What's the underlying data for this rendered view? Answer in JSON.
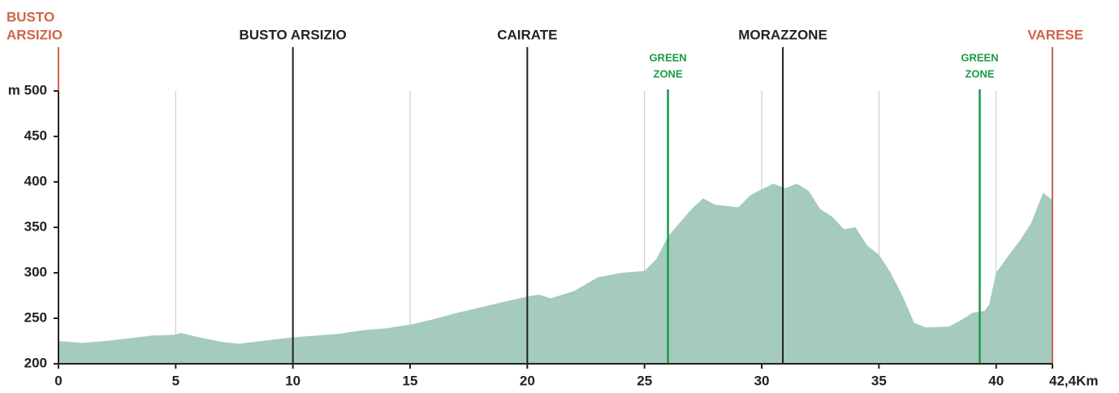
{
  "chart_data": {
    "type": "area",
    "x": [
      0,
      1,
      2,
      3,
      4,
      5,
      5.2,
      6,
      7,
      7.7,
      8,
      9,
      10,
      11,
      12,
      13,
      14,
      15,
      16,
      17,
      18,
      19,
      20,
      20.5,
      21,
      22,
      23,
      24,
      25,
      25.5,
      26,
      26.5,
      27,
      27.5,
      28,
      29,
      29.5,
      30,
      30.5,
      31,
      31.5,
      32,
      32.5,
      33,
      33.5,
      34,
      34.5,
      35,
      35.5,
      36,
      36.5,
      37,
      38,
      38.5,
      39,
      39.5,
      39.7,
      40,
      40.5,
      41,
      41.5,
      42,
      42.4
    ],
    "values": [
      225,
      223,
      225,
      228,
      231,
      232,
      234,
      229,
      224,
      222,
      223,
      226,
      229,
      231,
      233,
      237,
      239,
      243,
      249,
      256,
      262,
      268,
      274,
      276,
      272,
      280,
      295,
      300,
      302,
      315,
      340,
      355,
      370,
      382,
      375,
      372,
      385,
      392,
      398,
      393,
      398,
      390,
      370,
      362,
      348,
      350,
      330,
      320,
      300,
      275,
      245,
      240,
      241,
      248,
      256,
      258,
      265,
      300,
      318,
      335,
      355,
      388,
      380
    ],
    "color": "#a4cbbd",
    "xlim": [
      0,
      42.4
    ],
    "ylim": [
      200,
      500
    ],
    "xticks": [
      0,
      5,
      10,
      15,
      20,
      25,
      30,
      35,
      40,
      {
        "value": 42.4,
        "label": "42,4Km"
      }
    ],
    "yticks": [
      200,
      250,
      300,
      350,
      400,
      450,
      {
        "value": 500,
        "label": "m 500"
      }
    ],
    "grid": true,
    "markers": [
      {
        "x": 0,
        "lines": [
          "BUSTO",
          "ARSIZIO"
        ],
        "color": "#d0644a",
        "kind": "start"
      },
      {
        "x": 10,
        "lines": [
          "BUSTO ARSIZIO"
        ],
        "color": "#222222",
        "kind": "town"
      },
      {
        "x": 20,
        "lines": [
          "CAIRATE"
        ],
        "color": "#222222",
        "kind": "town"
      },
      {
        "x": 26,
        "lines": [
          "GREEN",
          "ZONE"
        ],
        "color": "#1a9a4a",
        "kind": "zone"
      },
      {
        "x": 30.9,
        "lines": [
          "MORAZZONE"
        ],
        "color": "#222222",
        "kind": "town"
      },
      {
        "x": 39.3,
        "lines": [
          "GREEN",
          "ZONE"
        ],
        "color": "#1a9a4a",
        "kind": "zone"
      },
      {
        "x": 42.4,
        "lines": [
          "VARESE"
        ],
        "color": "#d0644a",
        "kind": "end"
      }
    ]
  }
}
